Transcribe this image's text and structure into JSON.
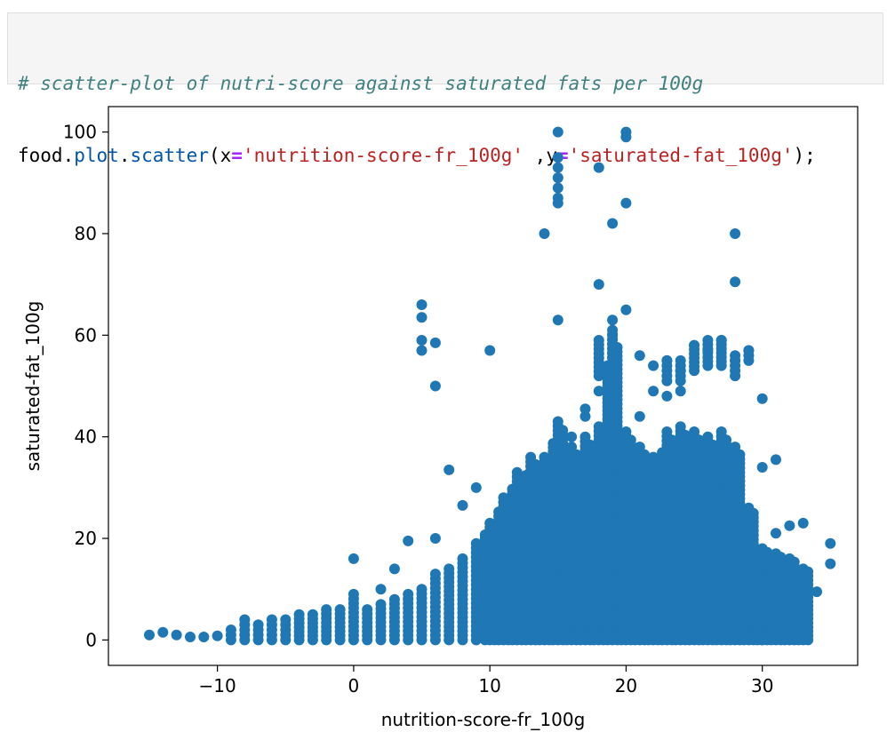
{
  "code_cell": {
    "comment": "# scatter-plot of nutri-score against saturated fats per 100g",
    "line2": {
      "obj": "food",
      "dot1": ".",
      "attr1": "plot",
      "dot2": ".",
      "method": "scatter",
      "open": "(",
      "kw_x": "x",
      "eq1": "=",
      "str_x": "'nutrition-score-fr_100g'",
      "sep": " ,",
      "kw_y": "y",
      "eq2": "=",
      "str_y": "'saturated-fat_100g'",
      "close": ");"
    }
  },
  "chart_data": {
    "type": "scatter",
    "xlabel": "nutrition-score-fr_100g",
    "ylabel": "saturated-fat_100g",
    "xlim": [
      -18,
      37
    ],
    "ylim": [
      -5,
      105
    ],
    "xticks": [
      -10,
      0,
      10,
      20,
      30
    ],
    "xtick_labels": [
      "−10",
      "0",
      "10",
      "20",
      "30"
    ],
    "yticks": [
      0,
      20,
      40,
      60,
      80,
      100
    ],
    "ytick_labels": [
      "0",
      "20",
      "40",
      "60",
      "80",
      "100"
    ],
    "grid": false,
    "color": "#1f77b4",
    "outliers": [
      [
        15,
        100
      ],
      [
        15,
        95
      ],
      [
        15,
        93
      ],
      [
        15,
        91
      ],
      [
        15,
        89
      ],
      [
        15,
        87
      ],
      [
        15,
        86
      ],
      [
        20,
        100
      ],
      [
        20,
        99
      ],
      [
        20,
        86
      ],
      [
        18,
        93
      ],
      [
        19,
        82
      ],
      [
        14,
        80
      ],
      [
        28,
        80
      ],
      [
        28,
        70.5
      ],
      [
        18,
        70
      ],
      [
        15,
        63
      ],
      [
        20,
        65
      ],
      [
        19,
        63
      ],
      [
        5,
        66
      ],
      [
        5,
        63.5
      ],
      [
        5,
        59
      ],
      [
        5,
        57
      ],
      [
        6,
        58.5
      ],
      [
        6,
        50
      ],
      [
        10,
        57
      ],
      [
        30,
        47.5
      ],
      [
        31,
        35.5
      ],
      [
        30,
        34
      ],
      [
        34,
        9.5
      ],
      [
        35,
        19
      ],
      [
        35,
        15
      ],
      [
        33,
        23
      ],
      [
        32,
        22.5
      ],
      [
        31,
        21
      ],
      [
        30,
        0
      ],
      [
        31,
        7
      ],
      [
        32,
        6
      ],
      [
        0,
        16
      ],
      [
        4,
        19.5
      ],
      [
        6,
        20
      ],
      [
        7,
        33.5
      ],
      [
        8,
        26.5
      ],
      [
        9,
        30
      ],
      [
        3,
        14
      ],
      [
        2,
        10
      ],
      [
        -8,
        4
      ],
      [
        -15,
        1
      ],
      [
        -14,
        1.5
      ],
      [
        -13,
        1
      ],
      [
        -12,
        0.6
      ],
      [
        -11,
        0.6
      ],
      [
        -10,
        0.8
      ],
      [
        16,
        40
      ],
      [
        17,
        44
      ],
      [
        17,
        45.5
      ],
      [
        18,
        49
      ],
      [
        21,
        44
      ],
      [
        23,
        48
      ],
      [
        22,
        54
      ],
      [
        24,
        53
      ],
      [
        23,
        55
      ],
      [
        26,
        57
      ],
      [
        27,
        59
      ],
      [
        28,
        55
      ],
      [
        29,
        57
      ],
      [
        25,
        58
      ],
      [
        21,
        56
      ],
      [
        22,
        49
      ],
      [
        24,
        49
      ]
    ],
    "columns": [
      {
        "x": -9,
        "ymax": 2,
        "n": 2
      },
      {
        "x": -8,
        "ymax": 3,
        "n": 2
      },
      {
        "x": -7,
        "ymax": 3,
        "n": 3
      },
      {
        "x": -6,
        "ymax": 4,
        "n": 3
      },
      {
        "x": -5,
        "ymax": 4,
        "n": 3
      },
      {
        "x": -4,
        "ymax": 5,
        "n": 4
      },
      {
        "x": -3,
        "ymax": 5,
        "n": 4
      },
      {
        "x": -2,
        "ymax": 6,
        "n": 4
      },
      {
        "x": -1,
        "ymax": 6,
        "n": 5
      },
      {
        "x": 0,
        "ymax": 9,
        "n": 6
      },
      {
        "x": 1,
        "ymax": 6,
        "n": 5
      },
      {
        "x": 2,
        "ymax": 7,
        "n": 6
      },
      {
        "x": 3,
        "ymax": 8,
        "n": 6
      },
      {
        "x": 4,
        "ymax": 9,
        "n": 7
      },
      {
        "x": 5,
        "ymax": 10,
        "n": 8
      },
      {
        "x": 6,
        "ymax": 13,
        "n": 9
      },
      {
        "x": 7,
        "ymax": 14,
        "n": 10
      },
      {
        "x": 8,
        "ymax": 16,
        "n": 12
      },
      {
        "x": 9,
        "ymax": 19,
        "n": 14
      },
      {
        "x": 10,
        "ymax": 23,
        "n": 17
      },
      {
        "x": 11,
        "ymax": 28,
        "n": 20
      },
      {
        "x": 12,
        "ymax": 33,
        "n": 23
      },
      {
        "x": 13,
        "ymax": 36,
        "n": 26
      },
      {
        "x": 14,
        "ymax": 36,
        "n": 27
      },
      {
        "x": 15,
        "ymax": 43,
        "n": 30
      },
      {
        "x": 16,
        "ymax": 38,
        "n": 28
      },
      {
        "x": 17,
        "ymax": 40,
        "n": 30
      },
      {
        "x": 18,
        "ymax": 42,
        "n": 31
      },
      {
        "x": 19,
        "ymax": 60,
        "n": 38
      },
      {
        "x": 20,
        "ymax": 41,
        "n": 31
      },
      {
        "x": 21,
        "ymax": 38,
        "n": 29
      },
      {
        "x": 22,
        "ymax": 36,
        "n": 28
      },
      {
        "x": 23,
        "ymax": 41,
        "n": 30
      },
      {
        "x": 24,
        "ymax": 42,
        "n": 30
      },
      {
        "x": 25,
        "ymax": 41,
        "n": 29
      },
      {
        "x": 26,
        "ymax": 40,
        "n": 28
      },
      {
        "x": 27,
        "ymax": 41,
        "n": 28
      },
      {
        "x": 28,
        "ymax": 38,
        "n": 26
      },
      {
        "x": 29,
        "ymax": 26,
        "n": 18
      },
      {
        "x": 30,
        "ymax": 18,
        "n": 14
      },
      {
        "x": 31,
        "ymax": 17,
        "n": 12
      },
      {
        "x": 32,
        "ymax": 16,
        "n": 10
      },
      {
        "x": 33,
        "ymax": 14,
        "n": 8
      }
    ],
    "upper_bands": [
      {
        "x": 19,
        "ymin": 52,
        "ymax": 61
      },
      {
        "x": 23,
        "ymin": 51,
        "ymax": 55
      },
      {
        "x": 24,
        "ymin": 51,
        "ymax": 55
      },
      {
        "x": 25,
        "ymin": 53,
        "ymax": 58
      },
      {
        "x": 26,
        "ymin": 54,
        "ymax": 59
      },
      {
        "x": 27,
        "ymin": 54,
        "ymax": 59
      },
      {
        "x": 28,
        "ymin": 52,
        "ymax": 56
      },
      {
        "x": 29,
        "ymin": 55,
        "ymax": 57
      },
      {
        "x": 18,
        "ymin": 52,
        "ymax": 59
      }
    ]
  }
}
